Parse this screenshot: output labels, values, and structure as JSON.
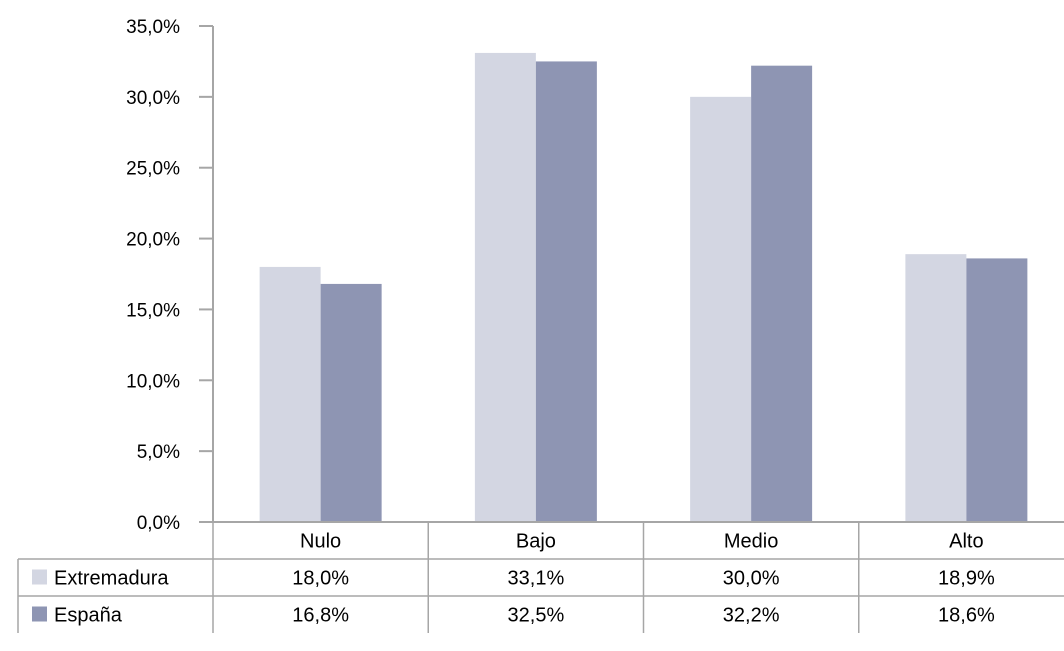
{
  "chart_data": {
    "type": "bar",
    "categories": [
      "Nulo",
      "Bajo",
      "Medio",
      "Alto"
    ],
    "series": [
      {
        "name": "Extremadura",
        "values": [
          18.0,
          33.1,
          30.0,
          18.9
        ],
        "labels": [
          "18,0%",
          "33,1%",
          "30,0%",
          "18,9%"
        ],
        "color": "#d3d6e2"
      },
      {
        "name": "España",
        "values": [
          16.8,
          32.5,
          32.2,
          18.6
        ],
        "labels": [
          "16,8%",
          "32,5%",
          "32,2%",
          "18,6%"
        ],
        "color": "#8e95b3"
      }
    ],
    "ylim": [
      0,
      35
    ],
    "yticks": [
      "0,0%",
      "5,0%",
      "10,0%",
      "15,0%",
      "20,0%",
      "25,0%",
      "30,0%",
      "35,0%"
    ],
    "ytick_values": [
      0,
      5,
      10,
      15,
      20,
      25,
      30,
      35
    ],
    "grid": false,
    "legend": "data-table",
    "axis_color": "#a6a6a6"
  }
}
